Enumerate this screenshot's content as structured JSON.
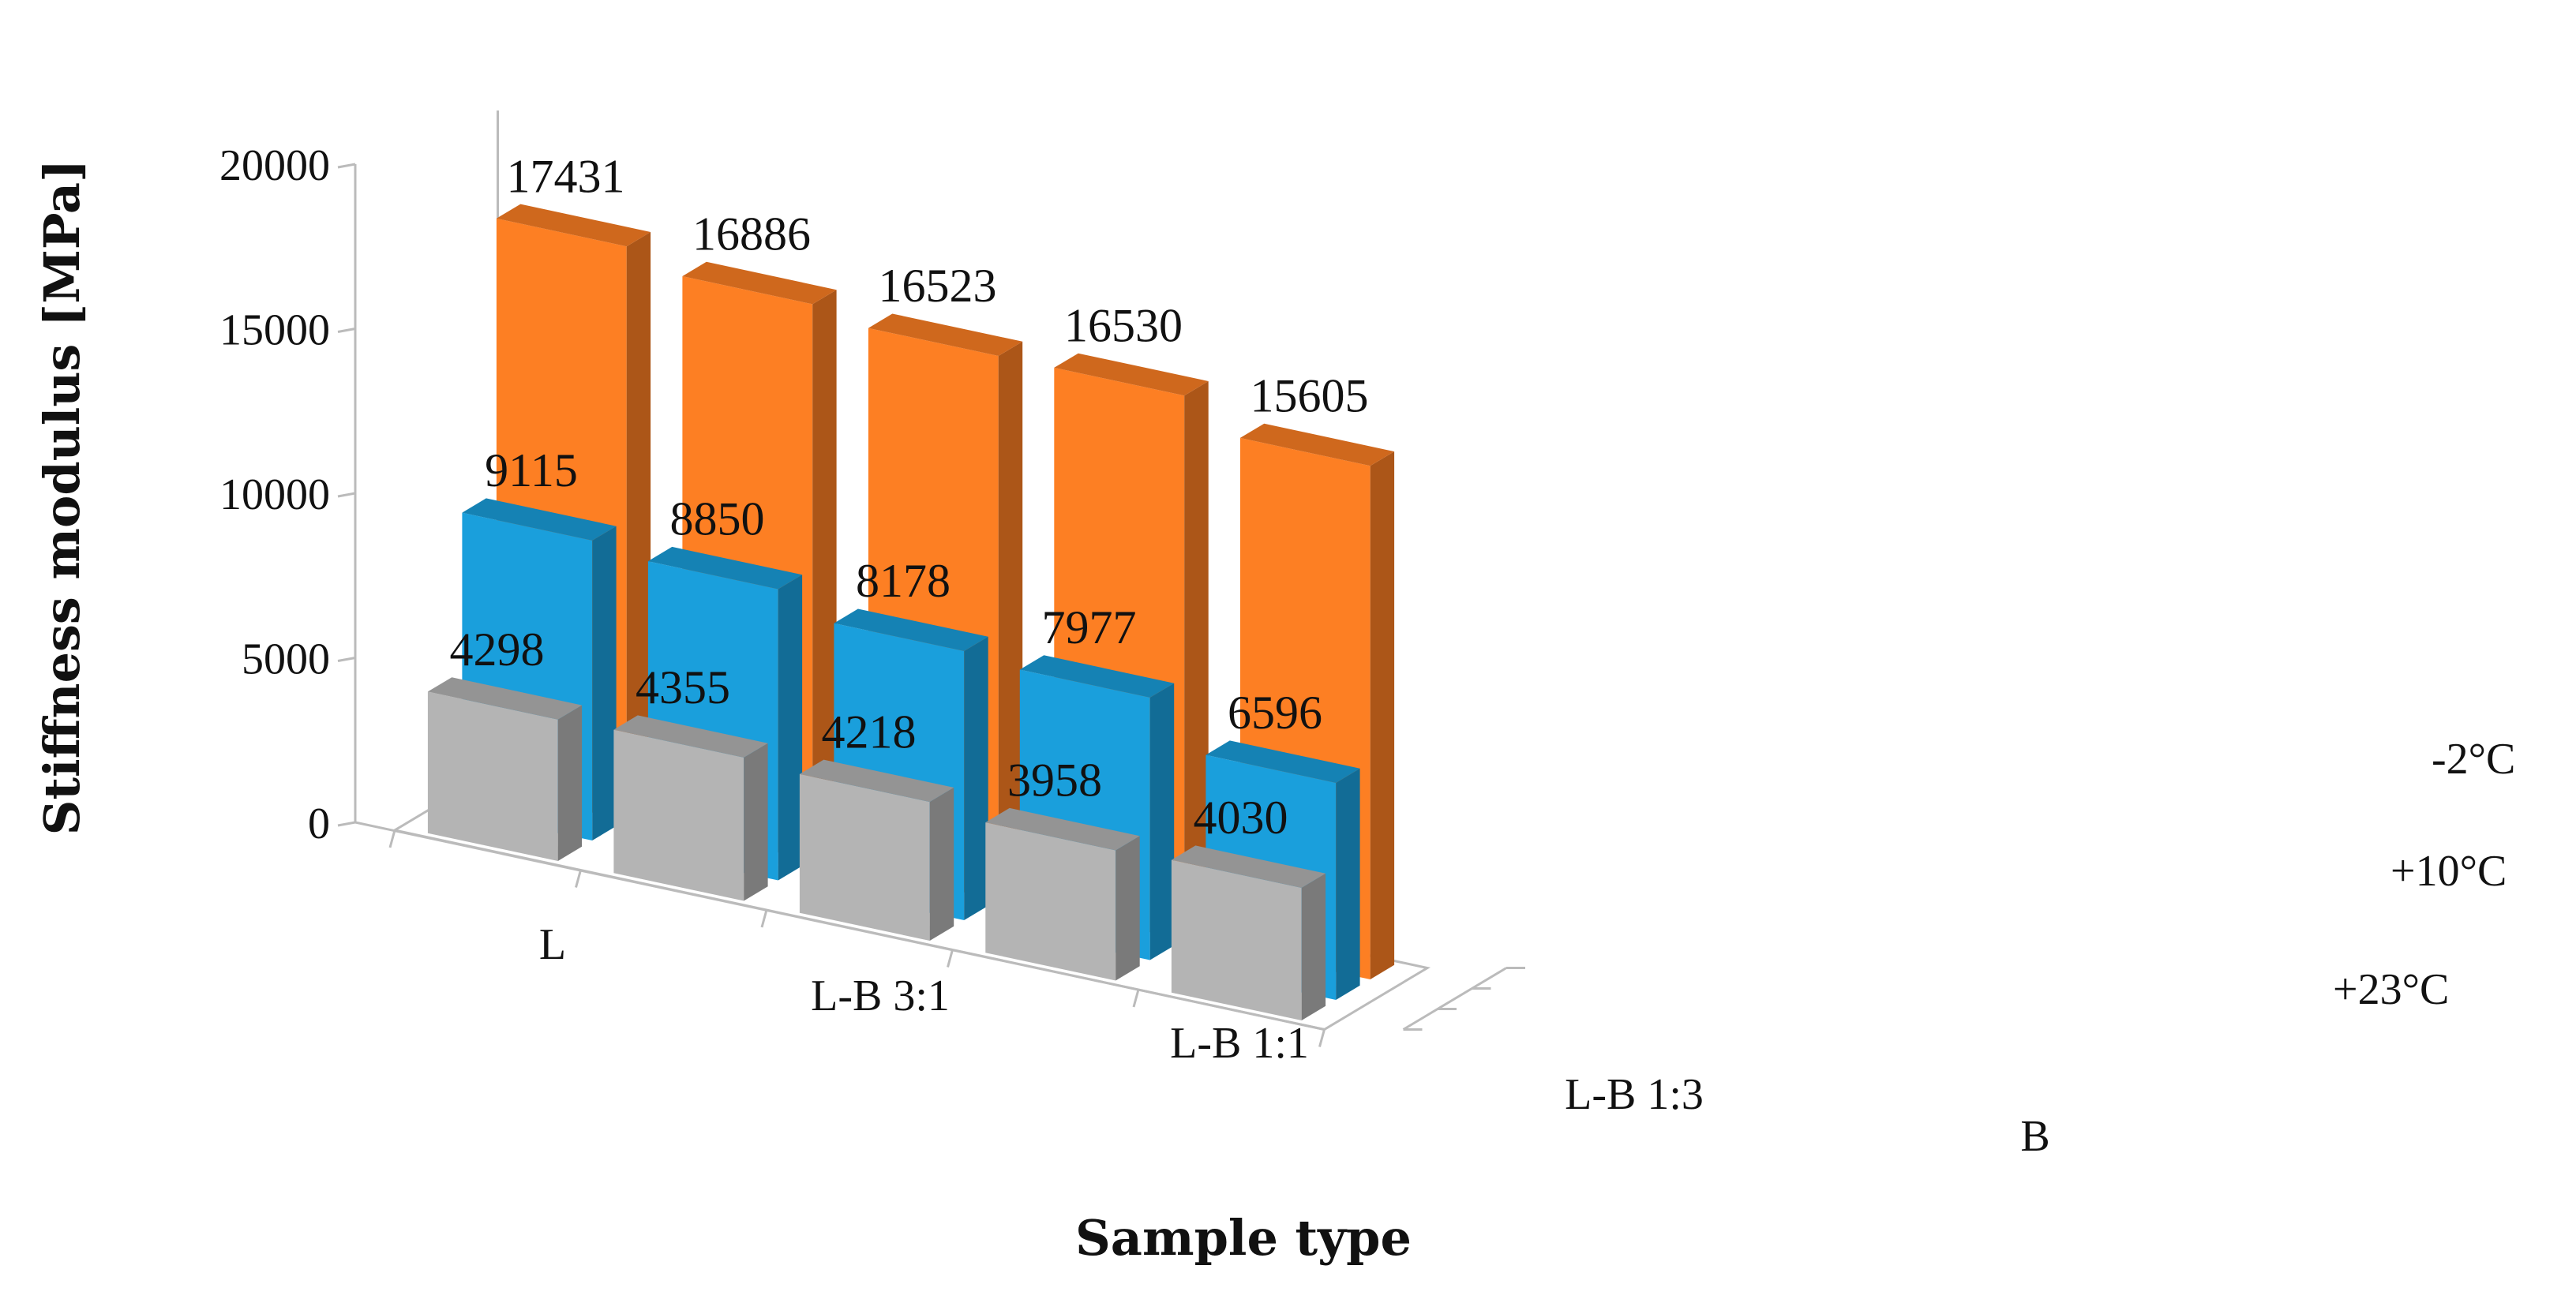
{
  "chart_data": {
    "type": "bar",
    "subtype": "3d-column",
    "title": "",
    "xlabel": "Sample type",
    "ylabel": "Stiffness modulus [MPa]",
    "categories": [
      "L",
      "L-B 3:1",
      "L-B 1:1",
      "L-B 1:3",
      "B"
    ],
    "series": [
      {
        "name": "+23°C",
        "values": [
          4298,
          4355,
          4218,
          3958,
          4030
        ]
      },
      {
        "name": "+10°C",
        "values": [
          9115,
          8850,
          8178,
          7977,
          6596
        ]
      },
      {
        "name": "-2°C",
        "values": [
          17431,
          16886,
          16523,
          16530,
          15605
        ]
      }
    ],
    "ylim": [
      0,
      20000
    ],
    "yticks": [
      "0",
      "5000",
      "10000",
      "15000",
      "20000"
    ],
    "data_labels": [
      [
        "4298",
        "4355",
        "4218",
        "3958",
        "4030"
      ],
      [
        "9115",
        "8850",
        "8178",
        "7977",
        "6596"
      ],
      [
        "17431",
        "16886",
        "16523",
        "16530",
        "15605"
      ]
    ],
    "colors": {
      "+23°C": "#b4b4b4",
      "+10°C": "#1a9fdc",
      "-2°C": "#fd7f23",
      "axis": "#bbbbbb"
    },
    "grid": false,
    "legend": "depth-axis-right"
  }
}
